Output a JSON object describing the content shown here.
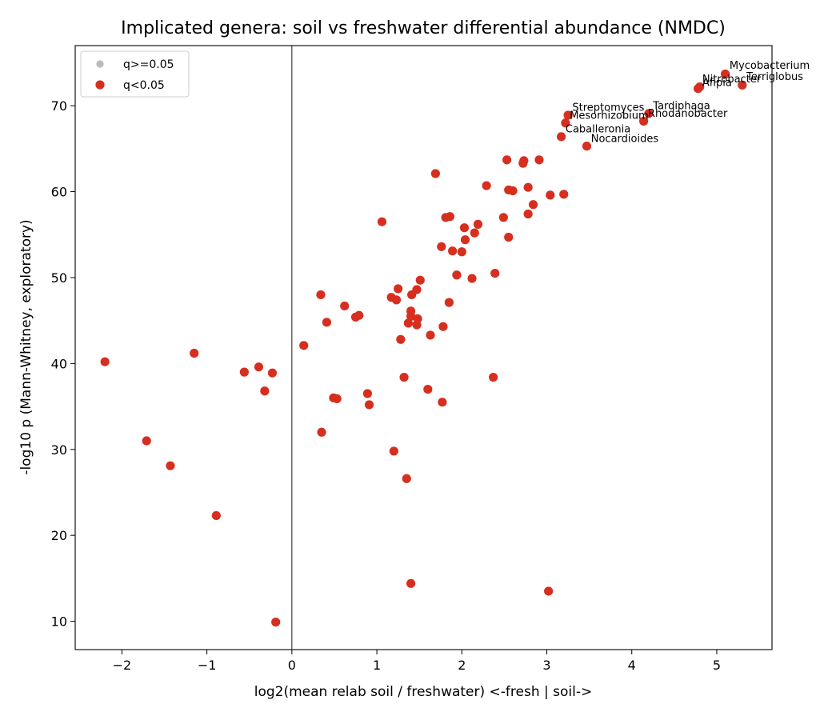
{
  "chart_data": {
    "type": "scatter",
    "title": "Implicated genera: soil vs freshwater differential abundance (NMDC)",
    "xlabel": "log2(mean relab soil / freshwater)   <-fresh  | soil->",
    "ylabel": "-log10 p (Mann-Whitney, exploratory)",
    "xlim": [
      -2.55,
      5.65
    ],
    "ylim": [
      6.7,
      77.0
    ],
    "xticks": [
      -2,
      -1,
      0,
      1,
      2,
      3,
      4,
      5
    ],
    "xtick_labels": [
      "−2",
      "−1",
      "0",
      "1",
      "2",
      "3",
      "4",
      "5"
    ],
    "yticks": [
      10,
      20,
      30,
      40,
      50,
      60,
      70
    ],
    "ytick_labels": [
      "10",
      "20",
      "30",
      "40",
      "50",
      "60",
      "70"
    ],
    "vline_x": 0,
    "grid": false,
    "legend_position": "top-left",
    "legend": [
      {
        "label": "q>=0.05",
        "color": "#bbbbbb"
      },
      {
        "label": "q<0.05",
        "color": "#d62f20"
      }
    ],
    "colors": {
      "significant": "#d62f20",
      "nonsignificant": "#bbbbbb"
    },
    "series": [
      {
        "name": "q<0.05",
        "points": [
          [
            5.1,
            73.7
          ],
          [
            5.3,
            72.4
          ],
          [
            4.8,
            72.2
          ],
          [
            4.78,
            72.0
          ],
          [
            3.25,
            68.9
          ],
          [
            3.22,
            68.0
          ],
          [
            4.2,
            69.1
          ],
          [
            4.14,
            68.2
          ],
          [
            3.17,
            66.4
          ],
          [
            3.47,
            65.3
          ],
          [
            2.53,
            63.7
          ],
          [
            2.73,
            63.6
          ],
          [
            2.72,
            63.3
          ],
          [
            2.91,
            63.7
          ],
          [
            1.69,
            62.1
          ],
          [
            2.29,
            60.7
          ],
          [
            2.55,
            60.2
          ],
          [
            2.6,
            60.1
          ],
          [
            2.78,
            60.5
          ],
          [
            3.04,
            59.6
          ],
          [
            3.2,
            59.7
          ],
          [
            2.84,
            58.5
          ],
          [
            2.78,
            57.4
          ],
          [
            1.06,
            56.5
          ],
          [
            1.81,
            57.0
          ],
          [
            1.86,
            57.1
          ],
          [
            2.49,
            57.0
          ],
          [
            2.19,
            56.2
          ],
          [
            2.03,
            55.8
          ],
          [
            2.15,
            55.2
          ],
          [
            2.55,
            54.7
          ],
          [
            2.04,
            54.4
          ],
          [
            1.76,
            53.6
          ],
          [
            1.89,
            53.1
          ],
          [
            2.0,
            53.0
          ],
          [
            1.94,
            50.3
          ],
          [
            2.12,
            49.9
          ],
          [
            2.39,
            50.5
          ],
          [
            1.51,
            49.7
          ],
          [
            1.25,
            48.7
          ],
          [
            1.47,
            48.6
          ],
          [
            1.41,
            48.0
          ],
          [
            0.34,
            48.0
          ],
          [
            1.17,
            47.7
          ],
          [
            1.23,
            47.4
          ],
          [
            1.85,
            47.1
          ],
          [
            0.62,
            46.7
          ],
          [
            1.4,
            46.1
          ],
          [
            1.4,
            45.5
          ],
          [
            0.75,
            45.4
          ],
          [
            0.79,
            45.6
          ],
          [
            1.48,
            45.2
          ],
          [
            1.37,
            44.7
          ],
          [
            0.41,
            44.8
          ],
          [
            1.47,
            44.5
          ],
          [
            1.78,
            44.3
          ],
          [
            1.63,
            43.3
          ],
          [
            1.28,
            42.8
          ],
          [
            0.14,
            42.1
          ],
          [
            -1.15,
            41.2
          ],
          [
            -2.2,
            40.2
          ],
          [
            -0.39,
            39.6
          ],
          [
            -0.56,
            39.0
          ],
          [
            -0.23,
            38.9
          ],
          [
            1.32,
            38.4
          ],
          [
            2.37,
            38.4
          ],
          [
            -0.32,
            36.8
          ],
          [
            1.6,
            37.0
          ],
          [
            0.89,
            36.5
          ],
          [
            0.49,
            36.0
          ],
          [
            0.53,
            35.9
          ],
          [
            1.77,
            35.5
          ],
          [
            0.91,
            35.2
          ],
          [
            0.35,
            32.0
          ],
          [
            -1.71,
            31.0
          ],
          [
            1.2,
            29.8
          ],
          [
            -1.43,
            28.1
          ],
          [
            1.35,
            26.6
          ],
          [
            -0.89,
            22.3
          ],
          [
            1.4,
            14.4
          ],
          [
            3.02,
            13.5
          ],
          [
            -0.19,
            9.9
          ]
        ]
      }
    ],
    "annotations": [
      {
        "text": "Mycobacterium",
        "x": 5.15,
        "y": 74.3
      },
      {
        "text": "Terriglobus",
        "x": 5.35,
        "y": 73.0
      },
      {
        "text": "Nitrobacter",
        "x": 4.83,
        "y": 72.7
      },
      {
        "text": "Afipia",
        "x": 4.83,
        "y": 72.3
      },
      {
        "text": "Streptomyces",
        "x": 3.3,
        "y": 69.4
      },
      {
        "text": "Tardiphaga",
        "x": 4.25,
        "y": 69.6
      },
      {
        "text": "Mesorhizobium",
        "x": 3.27,
        "y": 68.5
      },
      {
        "text": "Rhodanobacter",
        "x": 4.19,
        "y": 68.7
      },
      {
        "text": "Caballeronia",
        "x": 3.22,
        "y": 66.9
      },
      {
        "text": "Nocardioides",
        "x": 3.52,
        "y": 65.8
      }
    ]
  }
}
